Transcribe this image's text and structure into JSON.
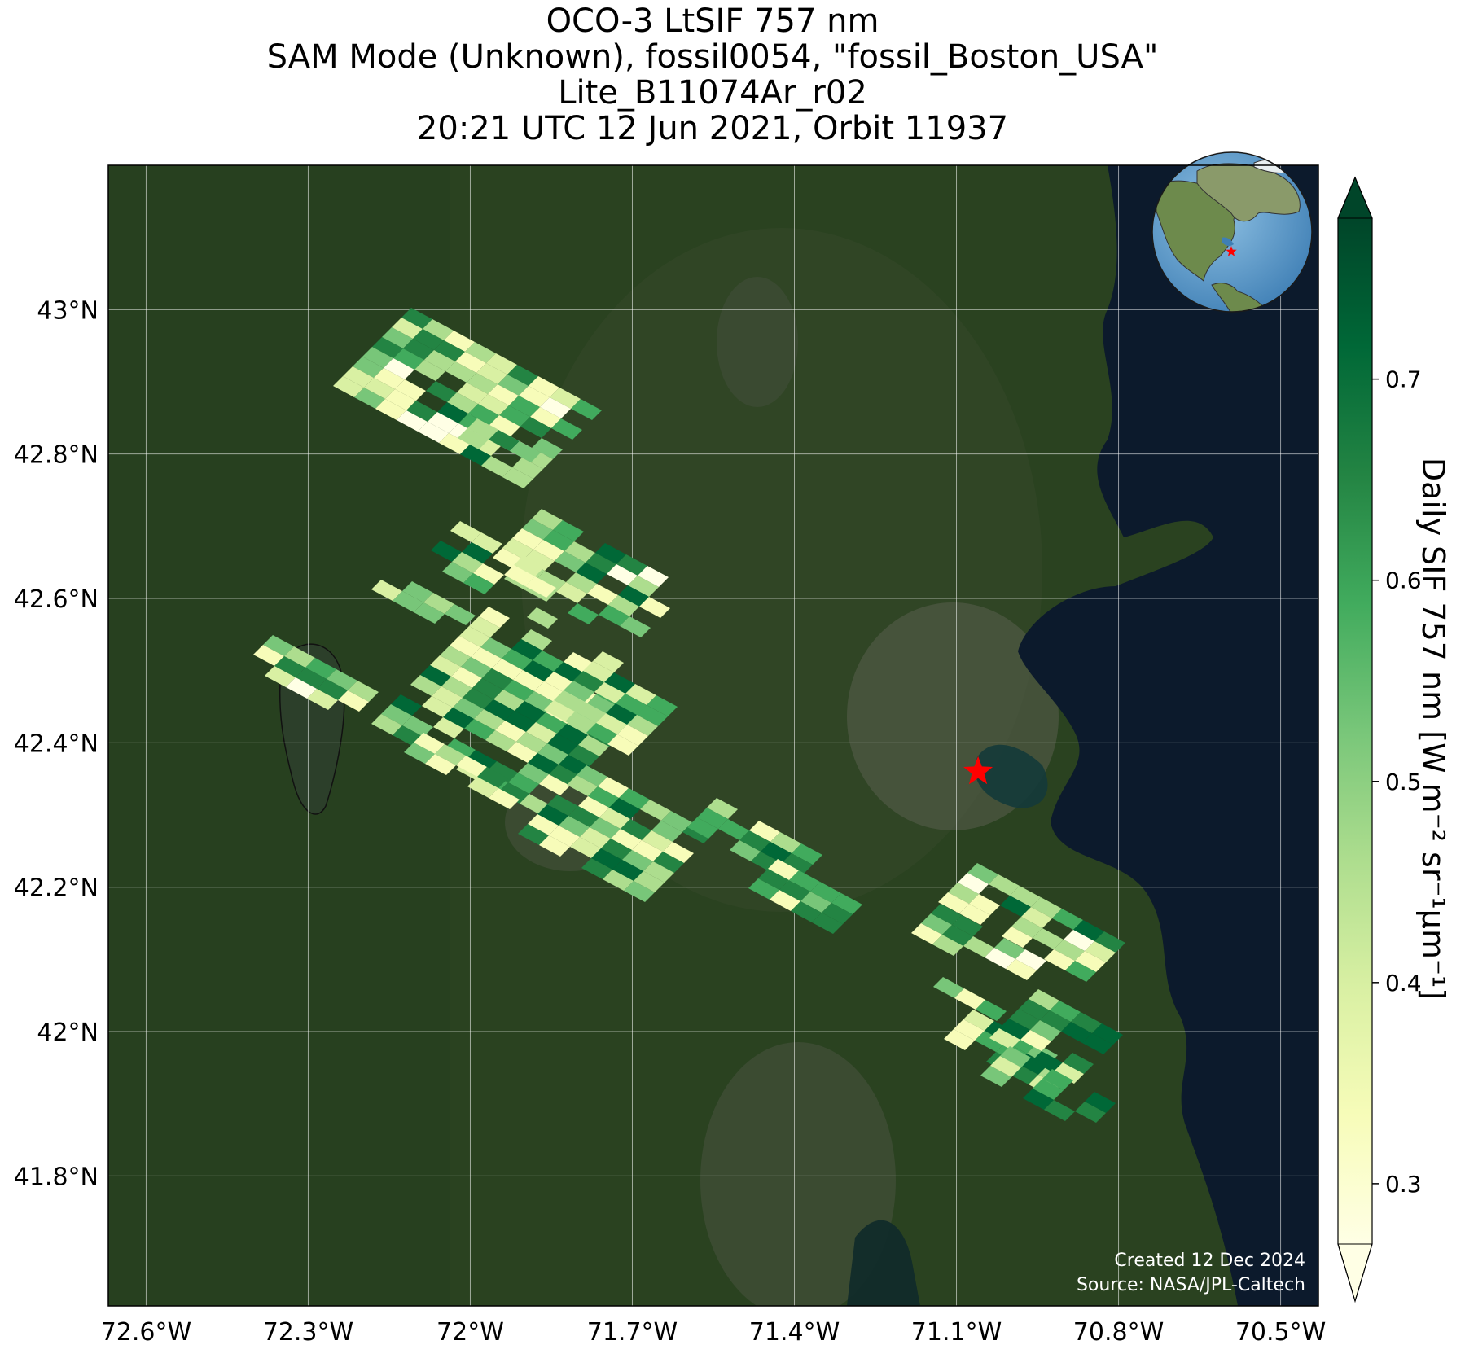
{
  "title": {
    "line1": "OCO-3 LtSIF 757 nm",
    "line2": "SAM Mode (Unknown), fossil0054, \"fossil_Boston_USA\"",
    "line3": "Lite_B11074Ar_r02",
    "line4": "20:21 UTC 12 Jun 2021, Orbit 11937"
  },
  "map": {
    "lon_range": [
      -72.67,
      -70.43
    ],
    "lat_range": [
      41.62,
      43.2
    ],
    "gridlines": true,
    "lon_ticks": [
      {
        "value": -72.6,
        "label": "72.6°W"
      },
      {
        "value": -72.3,
        "label": "72.3°W"
      },
      {
        "value": -72.0,
        "label": "72°W"
      },
      {
        "value": -71.7,
        "label": "71.7°W"
      },
      {
        "value": -71.4,
        "label": "71.4°W"
      },
      {
        "value": -71.1,
        "label": "71.1°W"
      },
      {
        "value": -70.8,
        "label": "70.8°W"
      },
      {
        "value": -70.5,
        "label": "70.5°W"
      }
    ],
    "lat_ticks": [
      {
        "value": 43.0,
        "label": "43°N"
      },
      {
        "value": 42.8,
        "label": "42.8°N"
      },
      {
        "value": 42.6,
        "label": "42.6°N"
      },
      {
        "value": 42.4,
        "label": "42.4°N"
      },
      {
        "value": 42.2,
        "label": "42.2°N"
      },
      {
        "value": 42.0,
        "label": "42°N"
      },
      {
        "value": 41.8,
        "label": "41.8°N"
      }
    ],
    "target_marker": {
      "lon": -71.06,
      "lat": 42.36,
      "color": "#ff0000",
      "symbol": "star"
    },
    "basemap": "satellite imagery",
    "inset_globe": {
      "center": "North America",
      "marker_color": "#ff0000"
    }
  },
  "colorbar": {
    "label": "Daily SIF 757 nm [W m⁻² sr⁻¹μm⁻¹]",
    "range": [
      0.27,
      0.78
    ],
    "extend": "both",
    "colormap": "YlGn",
    "ticks": [
      {
        "value": 0.3,
        "label": "0.3"
      },
      {
        "value": 0.4,
        "label": "0.4"
      },
      {
        "value": 0.5,
        "label": "0.5"
      },
      {
        "value": 0.6,
        "label": "0.6"
      },
      {
        "value": 0.7,
        "label": "0.7"
      }
    ]
  },
  "credits": {
    "created": "Created 12 Dec 2024",
    "source": "Source: NASA/JPL-Caltech"
  }
}
